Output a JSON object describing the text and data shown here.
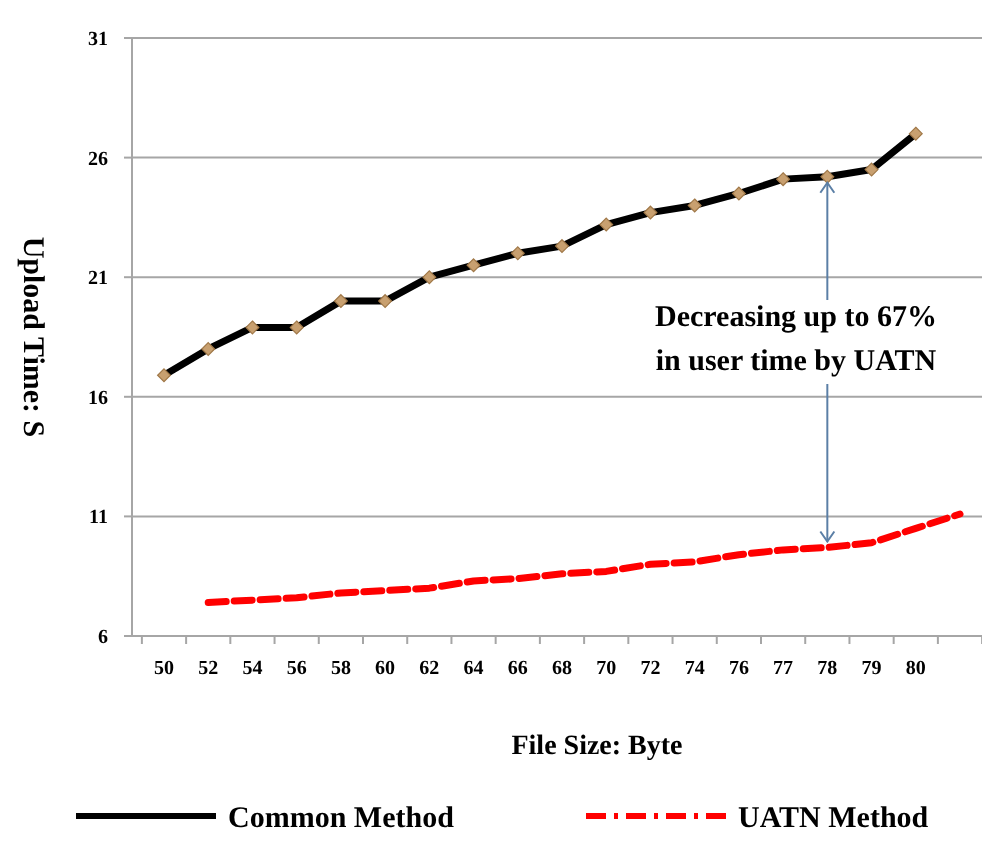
{
  "chart_data": {
    "type": "line",
    "xlabel": "File Size: Byte",
    "ylabel": "Upload Time: S",
    "categories": [
      "50",
      "52",
      "54",
      "56",
      "58",
      "60",
      "62",
      "64",
      "66",
      "68",
      "70",
      "72",
      "74",
      "76",
      "77",
      "78",
      "79",
      "80",
      null
    ],
    "series": [
      {
        "name": "Common Method",
        "color": "#000000",
        "marker": "diamond",
        "line_style": "solid",
        "values": [
          16.9,
          18,
          18.9,
          18.9,
          20,
          20,
          21,
          21.5,
          22,
          22.3,
          23.2,
          23.7,
          24,
          24.5,
          25.1,
          25.2,
          25.5,
          27,
          null
        ]
      },
      {
        "name": "UATN Method",
        "color": "#ff0000",
        "marker": "none",
        "line_style": "dashed",
        "values": [
          null,
          7.4,
          7.5,
          7.6,
          7.8,
          7.9,
          8,
          8.3,
          8.4,
          8.6,
          8.7,
          9,
          9.1,
          9.4,
          9.6,
          9.7,
          9.9,
          10.5,
          11.1
        ]
      }
    ],
    "ylim": [
      6,
      31
    ],
    "yticks": [
      6,
      11,
      16,
      21,
      26,
      31
    ],
    "grid": "y",
    "legend": "bottom",
    "annotations": [
      {
        "text": "Decreasing up to 67%\nin user time by UATN",
        "x": "78",
        "y": 9.7
      }
    ]
  }
}
